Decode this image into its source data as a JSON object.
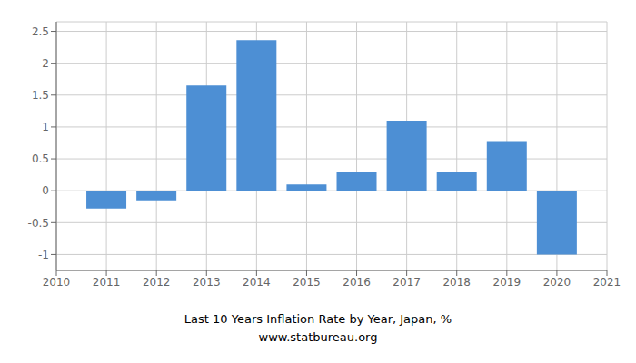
{
  "chart_data": {
    "type": "bar",
    "title": "Last 10 Years Inflation Rate by Year, Japan, %",
    "subtitle": "www.statbureau.org",
    "x": [
      2011,
      2012,
      2013,
      2014,
      2015,
      2016,
      2017,
      2018,
      2019,
      2020
    ],
    "values": [
      -0.28,
      -0.15,
      1.65,
      2.36,
      0.1,
      0.3,
      1.1,
      0.3,
      0.78,
      -1.0
    ],
    "color": "#4d8fd4",
    "xlim": [
      2010,
      2021
    ],
    "ylim": [
      -1.25,
      2.65
    ],
    "xticks": [
      2010,
      2011,
      2012,
      2013,
      2014,
      2015,
      2016,
      2017,
      2018,
      2019,
      2020,
      2021
    ],
    "yticks": [
      -1,
      -0.5,
      0,
      0.5,
      1,
      1.5,
      2,
      2.5
    ],
    "grid": true
  }
}
